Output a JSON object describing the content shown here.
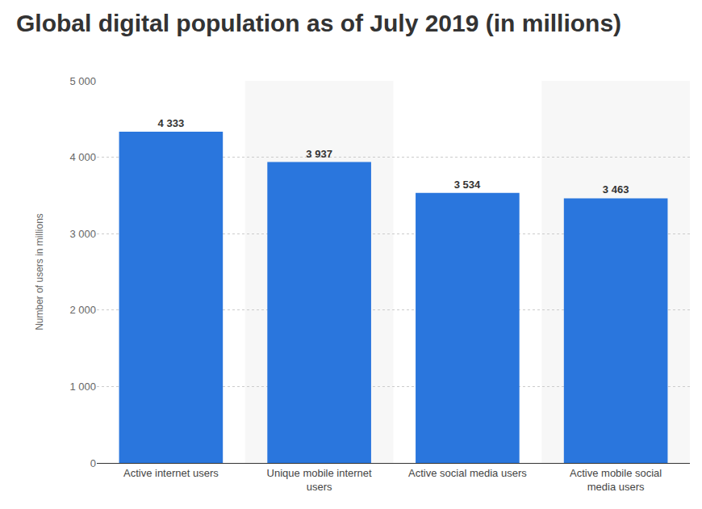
{
  "chart_data": {
    "type": "bar",
    "title": "Global digital population as of July 2019 (in millions)",
    "y_label": "Number of users in millions",
    "categories": [
      "Active internet users",
      "Unique mobile internet users",
      "Active social media users",
      "Active mobile social media users"
    ],
    "values": [
      4333,
      3937,
      3534,
      3463
    ],
    "value_labels": [
      "4 333",
      "3 937",
      "3 534",
      "3 463"
    ],
    "data_labels": true,
    "color": "#2a76dd",
    "ylim": [
      0,
      5000
    ],
    "yticks": [
      0,
      {
        "value": 1000,
        "label": "1 000"
      },
      {
        "value": 2000,
        "label": "2 000"
      },
      {
        "value": 3000,
        "label": "3 000"
      },
      {
        "value": 4000,
        "label": "4 000"
      },
      {
        "value": 5000,
        "label": "5 000"
      }
    ],
    "grid": true
  }
}
